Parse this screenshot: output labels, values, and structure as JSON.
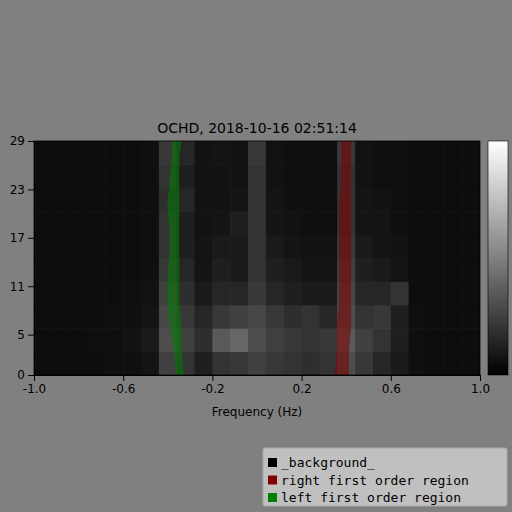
{
  "chart_data": {
    "type": "heatmap",
    "title": "OCHD, 2018-10-16 02:51:14",
    "x_label": "Frequency (Hz)",
    "xlim": [
      -1.0,
      1.0
    ],
    "xticks": [
      {
        "value": -1.0,
        "label": "-1.0"
      },
      {
        "value": -0.6,
        "label": "-0.6"
      },
      {
        "value": -0.2,
        "label": "-0.2"
      },
      {
        "value": 0.2,
        "label": "0.2"
      },
      {
        "value": 0.6,
        "label": "0.6"
      },
      {
        "value": 1.0,
        "label": "1.0"
      }
    ],
    "ylim": [
      0,
      29
    ],
    "yticks": [
      0,
      5,
      11,
      17,
      23,
      29
    ],
    "colorbar": {
      "range": [
        0,
        1
      ]
    },
    "x_edges": [
      -1.0,
      -0.92,
      -0.84,
      -0.76,
      -0.68,
      -0.6,
      -0.52,
      -0.44,
      -0.36,
      -0.28,
      -0.2,
      -0.12,
      -0.04,
      0.04,
      0.12,
      0.2,
      0.28,
      0.36,
      0.44,
      0.52,
      0.6,
      0.68,
      0.76,
      0.84,
      0.92,
      1.0
    ],
    "y_edges": [
      0,
      2.9,
      5.8,
      8.7,
      11.6,
      14.5,
      17.4,
      20.3,
      23.2,
      26.1,
      29
    ],
    "cells": [
      [
        0.05,
        0.05,
        0.05,
        0.05,
        0.06,
        0.06,
        0.08,
        0.25,
        0.2,
        0.12,
        0.2,
        0.22,
        0.25,
        0.22,
        0.2,
        0.18,
        0.2,
        0.3,
        0.22,
        0.15,
        0.1,
        0.06,
        0.05,
        0.05,
        0.05
      ],
      [
        0.05,
        0.05,
        0.05,
        0.06,
        0.06,
        0.07,
        0.1,
        0.3,
        0.25,
        0.18,
        0.35,
        0.4,
        0.3,
        0.25,
        0.22,
        0.2,
        0.22,
        0.35,
        0.25,
        0.2,
        0.12,
        0.06,
        0.05,
        0.05,
        0.05
      ],
      [
        0.05,
        0.05,
        0.05,
        0.05,
        0.06,
        0.06,
        0.08,
        0.28,
        0.22,
        0.15,
        0.22,
        0.25,
        0.28,
        0.22,
        0.18,
        0.2,
        0.15,
        0.3,
        0.2,
        0.22,
        0.12,
        0.06,
        0.05,
        0.05,
        0.05
      ],
      [
        0.05,
        0.05,
        0.05,
        0.05,
        0.05,
        0.06,
        0.07,
        0.25,
        0.18,
        0.1,
        0.15,
        0.15,
        0.22,
        0.15,
        0.12,
        0.1,
        0.1,
        0.28,
        0.15,
        0.15,
        0.2,
        0.05,
        0.05,
        0.05,
        0.05
      ],
      [
        0.05,
        0.05,
        0.05,
        0.05,
        0.05,
        0.05,
        0.06,
        0.22,
        0.15,
        0.08,
        0.12,
        0.1,
        0.2,
        0.12,
        0.1,
        0.08,
        0.08,
        0.25,
        0.12,
        0.1,
        0.08,
        0.05,
        0.05,
        0.05,
        0.05
      ],
      [
        0.05,
        0.05,
        0.05,
        0.05,
        0.05,
        0.05,
        0.06,
        0.2,
        0.12,
        0.08,
        0.1,
        0.1,
        0.2,
        0.1,
        0.08,
        0.07,
        0.07,
        0.22,
        0.1,
        0.08,
        0.07,
        0.05,
        0.05,
        0.05,
        0.05
      ],
      [
        0.05,
        0.05,
        0.05,
        0.05,
        0.05,
        0.05,
        0.06,
        0.2,
        0.12,
        0.07,
        0.08,
        0.12,
        0.2,
        0.08,
        0.07,
        0.06,
        0.06,
        0.2,
        0.08,
        0.08,
        0.06,
        0.05,
        0.05,
        0.05,
        0.05
      ],
      [
        0.05,
        0.05,
        0.05,
        0.05,
        0.05,
        0.05,
        0.06,
        0.18,
        0.15,
        0.07,
        0.07,
        0.08,
        0.2,
        0.08,
        0.06,
        0.06,
        0.06,
        0.2,
        0.08,
        0.07,
        0.06,
        0.05,
        0.05,
        0.05,
        0.05
      ],
      [
        0.05,
        0.05,
        0.05,
        0.05,
        0.05,
        0.05,
        0.06,
        0.2,
        0.12,
        0.07,
        0.07,
        0.07,
        0.2,
        0.07,
        0.06,
        0.06,
        0.06,
        0.2,
        0.07,
        0.06,
        0.06,
        0.05,
        0.05,
        0.05,
        0.05
      ],
      [
        0.05,
        0.05,
        0.05,
        0.05,
        0.05,
        0.05,
        0.06,
        0.22,
        0.15,
        0.07,
        0.08,
        0.07,
        0.22,
        0.07,
        0.06,
        0.06,
        0.06,
        0.22,
        0.07,
        0.06,
        0.06,
        0.05,
        0.05,
        0.05,
        0.05
      ]
    ],
    "series": [
      {
        "name": "_background_",
        "color": "#000000"
      },
      {
        "name": "right first order region",
        "color": "#800000",
        "y": [
          0,
          3,
          6,
          9,
          12,
          15,
          18,
          21,
          24,
          27,
          29
        ],
        "x_left": [
          0.35,
          0.36,
          0.36,
          0.37,
          0.37,
          0.37,
          0.37,
          0.37,
          0.38,
          0.38,
          0.38
        ],
        "x_right": [
          0.41,
          0.41,
          0.42,
          0.42,
          0.42,
          0.42,
          0.42,
          0.42,
          0.42,
          0.42,
          0.42
        ]
      },
      {
        "name": "left first order region",
        "color": "#008000",
        "y": [
          0,
          3,
          6,
          9,
          12,
          15,
          18,
          21,
          24,
          27,
          29
        ],
        "x_left": [
          -0.36,
          -0.37,
          -0.39,
          -0.4,
          -0.4,
          -0.39,
          -0.39,
          -0.4,
          -0.39,
          -0.38,
          -0.38
        ],
        "x_right": [
          -0.33,
          -0.34,
          -0.34,
          -0.35,
          -0.35,
          -0.35,
          -0.35,
          -0.35,
          -0.35,
          -0.35,
          -0.34
        ]
      }
    ],
    "legend": "lower right"
  }
}
